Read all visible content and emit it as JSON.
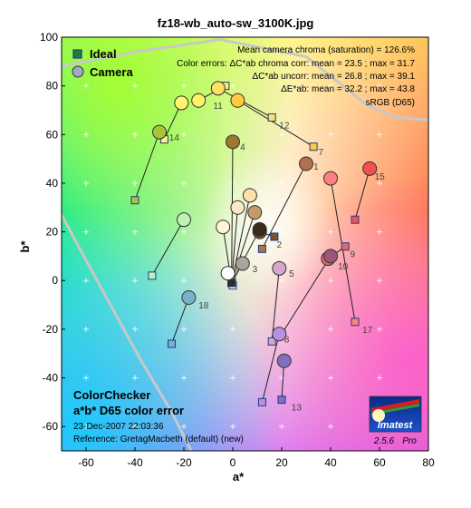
{
  "chart_data": {
    "type": "scatter",
    "title": "fz18-wb_auto-sw_3100K.jpg",
    "xlabel": "a*",
    "ylabel": "b*",
    "xlim": [
      -70,
      80
    ],
    "ylim": [
      -70,
      100
    ],
    "xticks": [
      -60,
      -40,
      -20,
      0,
      20,
      40,
      60,
      80
    ],
    "yticks": [
      -60,
      -40,
      -20,
      0,
      20,
      40,
      60,
      80,
      100
    ],
    "grid": "plus-markers",
    "legend_position": "top-left",
    "legend": {
      "ideal": "Ideal",
      "camera": "Camera"
    },
    "annotations": [
      "Mean camera chroma (saturation) = 126.6%",
      "Color errors:  ΔC*ab chroma corr:  mean = 23.5 ;  max = 31.7",
      "ΔC*ab uncorr:  mean = 26.8 ;  max = 39.1",
      "ΔE*ab:  mean = 32.2 ;  max = 43.8",
      "sRGB (D65)"
    ],
    "patches": [
      {
        "id": "1",
        "ideal": [
          12,
          13
        ],
        "camera": [
          30,
          48
        ],
        "color": "#b07050"
      },
      {
        "id": "2",
        "ideal": [
          17,
          18
        ],
        "camera": [
          11,
          20
        ],
        "color": "#7a5238"
      },
      {
        "id": "3",
        "ideal": [
          -0.5,
          -1
        ],
        "camera": [
          4,
          7
        ],
        "color": "#aca49a"
      },
      {
        "id": "4",
        "ideal": [
          -0.5,
          0
        ],
        "camera": [
          0,
          57
        ],
        "color": "#9a7a2e"
      },
      {
        "id": "5",
        "ideal": [
          16,
          -25
        ],
        "camera": [
          19,
          5
        ],
        "color": "#d4a7cc"
      },
      {
        "id": "6",
        "ideal": [
          -33,
          2
        ],
        "camera": [
          -20,
          25
        ],
        "color": "#bdf1b5"
      },
      {
        "id": "7",
        "ideal": [
          33,
          55
        ],
        "camera": [
          2,
          74
        ],
        "color": "#ffcb3f"
      },
      {
        "id": "8",
        "ideal": [
          12,
          -50
        ],
        "camera": [
          19,
          -22
        ],
        "color": "#b890e0"
      },
      {
        "id": "9",
        "ideal": [
          46,
          14
        ],
        "camera": [
          39,
          9
        ],
        "color": "#e06a66"
      },
      {
        "id": "10",
        "ideal": [
          20,
          -22
        ],
        "camera": [
          40,
          10
        ],
        "color": "#a0547a"
      },
      {
        "id": "11",
        "ideal": [
          -3,
          80
        ],
        "camera": [
          -14,
          74
        ],
        "color": "#fff06a"
      },
      {
        "id": "12",
        "ideal": [
          16,
          67
        ],
        "camera": [
          -6,
          79
        ],
        "color": "#ffe060"
      },
      {
        "id": "13",
        "ideal": [
          20,
          -49
        ],
        "camera": [
          21,
          -33
        ],
        "color": "#8070c0"
      },
      {
        "id": "14",
        "ideal": [
          -40,
          33
        ],
        "camera": [
          -30,
          61
        ],
        "color": "#a8c43e"
      },
      {
        "id": "15",
        "ideal": [
          50,
          25
        ],
        "camera": [
          56,
          46
        ],
        "color": "#f45050"
      },
      {
        "id": "16",
        "ideal": [
          -28,
          58
        ],
        "camera": [
          -21,
          73
        ],
        "color": "#fff56e"
      },
      {
        "id": "17",
        "ideal": [
          50,
          -17
        ],
        "camera": [
          40,
          42
        ],
        "color": "#ff8080"
      },
      {
        "id": "18",
        "ideal": [
          -25,
          -26
        ],
        "camera": [
          -18,
          -7
        ],
        "color": "#7ab0c8"
      },
      {
        "id": "19",
        "ideal": [
          0,
          -2
        ],
        "camera": [
          -2,
          3
        ],
        "color": "#ffffff"
      },
      {
        "id": "20",
        "ideal": [
          -0.5,
          -1
        ],
        "camera": [
          -4,
          22
        ],
        "color": "#fff5d8"
      },
      {
        "id": "21",
        "ideal": [
          -0.5,
          -1
        ],
        "camera": [
          2,
          30
        ],
        "color": "#fde8c8"
      },
      {
        "id": "22",
        "ideal": [
          -0.5,
          -1
        ],
        "camera": [
          9,
          28
        ],
        "color": "#c49a6c"
      },
      {
        "id": "23",
        "ideal": [
          -0.5,
          -1
        ],
        "camera": [
          7,
          35
        ],
        "color": "#ffe0a8"
      },
      {
        "id": "24",
        "ideal": [
          -0.5,
          -1
        ],
        "camera": [
          11,
          21
        ],
        "color": "#3a2a18"
      }
    ],
    "number_labels": [
      {
        "text": "1",
        "at": [
          33,
          47
        ]
      },
      {
        "text": "2",
        "at": [
          18,
          15
        ]
      },
      {
        "text": "3",
        "at": [
          8,
          5
        ]
      },
      {
        "text": "4",
        "at": [
          3,
          55
        ]
      },
      {
        "text": "5",
        "at": [
          23,
          3
        ]
      },
      {
        "text": "7",
        "at": [
          35,
          53
        ]
      },
      {
        "text": "8",
        "at": [
          21,
          -24
        ]
      },
      {
        "text": "9",
        "at": [
          48,
          11
        ]
      },
      {
        "text": "10",
        "at": [
          43,
          6
        ]
      },
      {
        "text": "11",
        "at": [
          -8,
          72
        ]
      },
      {
        "text": "12",
        "at": [
          19,
          64
        ]
      },
      {
        "text": "13",
        "at": [
          24,
          -52
        ]
      },
      {
        "text": "14",
        "at": [
          -26,
          59
        ]
      },
      {
        "text": "15",
        "at": [
          58,
          43
        ]
      },
      {
        "text": "17",
        "at": [
          53,
          -20
        ]
      },
      {
        "text": "18",
        "at": [
          -14,
          -10
        ]
      }
    ]
  },
  "info": {
    "line1": "ColorChecker",
    "line2": "a*b* D65 color error",
    "date": "23-Dec-2007 22:03:36",
    "reference": "Reference: GretagMacbeth (default) (new)"
  },
  "logo": {
    "text": "Imatest",
    "version": "2.5.6",
    "edition": "Pro"
  }
}
